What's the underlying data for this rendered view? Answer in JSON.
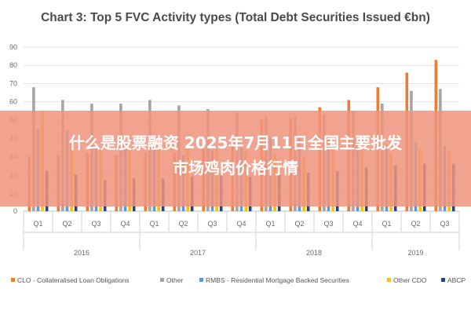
{
  "chart_data": {
    "type": "bar",
    "title": "Chart 3: Top 5 FVC Activity types (Total Debt Securities Issued €bn)",
    "ylim": [
      0,
      90
    ],
    "yticks": [
      0,
      10,
      20,
      30,
      40,
      50,
      60,
      70,
      80,
      90
    ],
    "grid": true,
    "legend_position": "bottom",
    "categories": [
      "Q1",
      "Q2",
      "Q3",
      "Q4",
      "Q1",
      "Q2",
      "Q3",
      "Q4",
      "Q1",
      "Q2",
      "Q3",
      "Q4",
      "Q1",
      "Q2",
      "Q3"
    ],
    "year_groups": [
      {
        "label": "2016",
        "span": 4
      },
      {
        "label": "2017",
        "span": 4
      },
      {
        "label": "2018",
        "span": 4
      },
      {
        "label": "2019",
        "span": 3
      }
    ],
    "series": [
      {
        "name": "CLO - Collateralised Loan Obligations",
        "color": "#ed7d31",
        "values": [
          30,
          31,
          32,
          31,
          32,
          32,
          34,
          40,
          50,
          51,
          57,
          61,
          68,
          76,
          83
        ]
      },
      {
        "name": "Other",
        "color": "#a5a5a5",
        "values": [
          68,
          61,
          59,
          59,
          61,
          58,
          56,
          54,
          52,
          52,
          53,
          55,
          59,
          66,
          67
        ]
      },
      {
        "name": "RMBS - Residential Mortgage Backed Securities",
        "color": "#5b9bd5",
        "values": [
          45,
          44,
          36,
          37,
          35,
          31,
          33,
          35,
          40,
          41,
          41,
          40,
          36,
          38,
          36
        ]
      },
      {
        "name": "Other CDO",
        "color": "#ffc000",
        "values": [
          55,
          39,
          34,
          34,
          35,
          34,
          34,
          33,
          32,
          30,
          34,
          33,
          32,
          34,
          33
        ]
      },
      {
        "name": "ABCP",
        "color": "#264478",
        "values": [
          22,
          20,
          17,
          18,
          18,
          19,
          20,
          19,
          20,
          21,
          22,
          24,
          25,
          26,
          26
        ]
      }
    ]
  },
  "overlay": {
    "line1": "什么是股票融资 2025年7月11日全国主要批发",
    "line2": "市场鸡肉价格行情"
  }
}
